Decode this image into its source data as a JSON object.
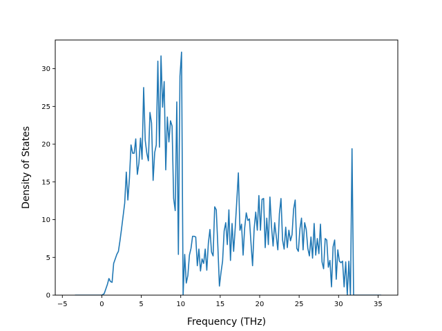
{
  "chart_data": {
    "type": "line",
    "title": "",
    "xlabel": "Frequency (THz)",
    "ylabel": "Density of States",
    "xlim": [
      -5.9,
      37.5
    ],
    "ylim": [
      0,
      33.8
    ],
    "xticks": [
      -5,
      0,
      5,
      10,
      15,
      20,
      25,
      30,
      35
    ],
    "yticks": [
      0,
      5,
      10,
      15,
      20,
      25,
      30
    ],
    "grid": false,
    "legend": "none",
    "line_color": "#1f77b4",
    "series": [
      {
        "x": [
          -3.4,
          -3.0,
          -2.5,
          -2.0,
          -1.5,
          -1.0,
          -0.5,
          0.0,
          0.3,
          0.5,
          0.7,
          0.9,
          1.1,
          1.3,
          1.5,
          1.7,
          1.9,
          2.1,
          2.3,
          2.5,
          2.7,
          2.9,
          3.1,
          3.3,
          3.5,
          3.7,
          3.9,
          4.1,
          4.3,
          4.5,
          4.7,
          4.9,
          5.1,
          5.3,
          5.5,
          5.7,
          5.9,
          6.1,
          6.3,
          6.5,
          6.7,
          6.9,
          7.1,
          7.3,
          7.5,
          7.7,
          7.9,
          8.1,
          8.3,
          8.5,
          8.7,
          8.9,
          9.1,
          9.3,
          9.5,
          9.7,
          9.9,
          10.1,
          10.3,
          10.5,
          10.7,
          10.9,
          11.1,
          11.3,
          11.5,
          11.7,
          11.9,
          12.1,
          12.3,
          12.5,
          12.7,
          12.9,
          13.1,
          13.3,
          13.5,
          13.7,
          13.9,
          14.1,
          14.3,
          14.5,
          14.7,
          14.9,
          15.1,
          15.3,
          15.5,
          15.7,
          15.9,
          16.1,
          16.3,
          16.5,
          16.7,
          16.9,
          17.1,
          17.3,
          17.5,
          17.7,
          17.9,
          18.1,
          18.3,
          18.5,
          18.7,
          18.9,
          19.1,
          19.3,
          19.5,
          19.7,
          19.9,
          20.1,
          20.3,
          20.5,
          20.7,
          20.9,
          21.1,
          21.3,
          21.5,
          21.7,
          21.9,
          22.1,
          22.3,
          22.5,
          22.7,
          22.9,
          23.1,
          23.3,
          23.5,
          23.7,
          23.9,
          24.1,
          24.3,
          24.5,
          24.7,
          24.9,
          25.1,
          25.3,
          25.5,
          25.7,
          25.9,
          26.1,
          26.3,
          26.5,
          26.7,
          26.9,
          27.1,
          27.3,
          27.5,
          27.7,
          27.9,
          28.1,
          28.3,
          28.5,
          28.7,
          28.9,
          29.1,
          29.3,
          29.5,
          29.7,
          29.9,
          30.1,
          30.3,
          30.5,
          30.7,
          30.9,
          31.1,
          31.3,
          31.5,
          31.7,
          31.9,
          32.1,
          32.5,
          33.0,
          33.5,
          34.0,
          34.5,
          35.0,
          35.4
        ],
        "values": [
          0,
          0,
          0,
          0,
          0,
          0,
          0,
          0,
          0.2,
          0.8,
          1.4,
          2.2,
          1.8,
          1.7,
          4.2,
          4.8,
          5.4,
          5.8,
          7.2,
          8.8,
          10.5,
          12.2,
          16.3,
          12.6,
          15.5,
          19.9,
          18.8,
          18.8,
          20.7,
          16.0,
          17.5,
          20.8,
          18.0,
          27.5,
          20.5,
          18.8,
          17.8,
          24.2,
          22.8,
          15.2,
          18.9,
          19.9,
          31.0,
          19.6,
          31.7,
          24.9,
          28.3,
          16.6,
          23.6,
          20.3,
          23.1,
          22.4,
          12.8,
          11.2,
          25.6,
          5.4,
          29.0,
          32.2,
          0,
          5.4,
          1.6,
          2.6,
          5.3,
          6.2,
          7.8,
          7.8,
          7.7,
          3.9,
          6.1,
          3.2,
          4.8,
          4.2,
          6.1,
          3.3,
          6.9,
          8.7,
          5.7,
          5.2,
          11.7,
          11.3,
          6.5,
          1.2,
          3.0,
          4.5,
          8.5,
          9.6,
          6.7,
          11.3,
          4.6,
          9.5,
          5.8,
          8.9,
          12.5,
          16.2,
          8.6,
          9.4,
          5.3,
          8.9,
          10.9,
          9.9,
          10.1,
          6.9,
          3.9,
          8.8,
          11.0,
          8.6,
          13.2,
          8.6,
          12.7,
          12.8,
          6.3,
          10.2,
          6.7,
          13.0,
          9.1,
          6.5,
          9.6,
          7.8,
          6.0,
          10.8,
          12.8,
          7.3,
          6.1,
          9.0,
          6.3,
          8.6,
          7.2,
          8.0,
          11.4,
          12.6,
          6.2,
          5.8,
          8.8,
          10.2,
          6.0,
          9.6,
          8.7,
          6.2,
          5.2,
          7.7,
          4.9,
          9.5,
          5.3,
          7.5,
          5.5,
          9.4,
          4.4,
          3.5,
          7.5,
          7.3,
          3.7,
          4.6,
          1.1,
          6.4,
          7.3,
          2.1,
          6.0,
          4.5,
          4.3,
          4.5,
          1.1,
          4.4,
          0,
          4.5,
          0,
          19.4,
          0,
          0,
          0,
          0,
          0,
          0,
          0,
          0,
          0
        ]
      }
    ]
  }
}
